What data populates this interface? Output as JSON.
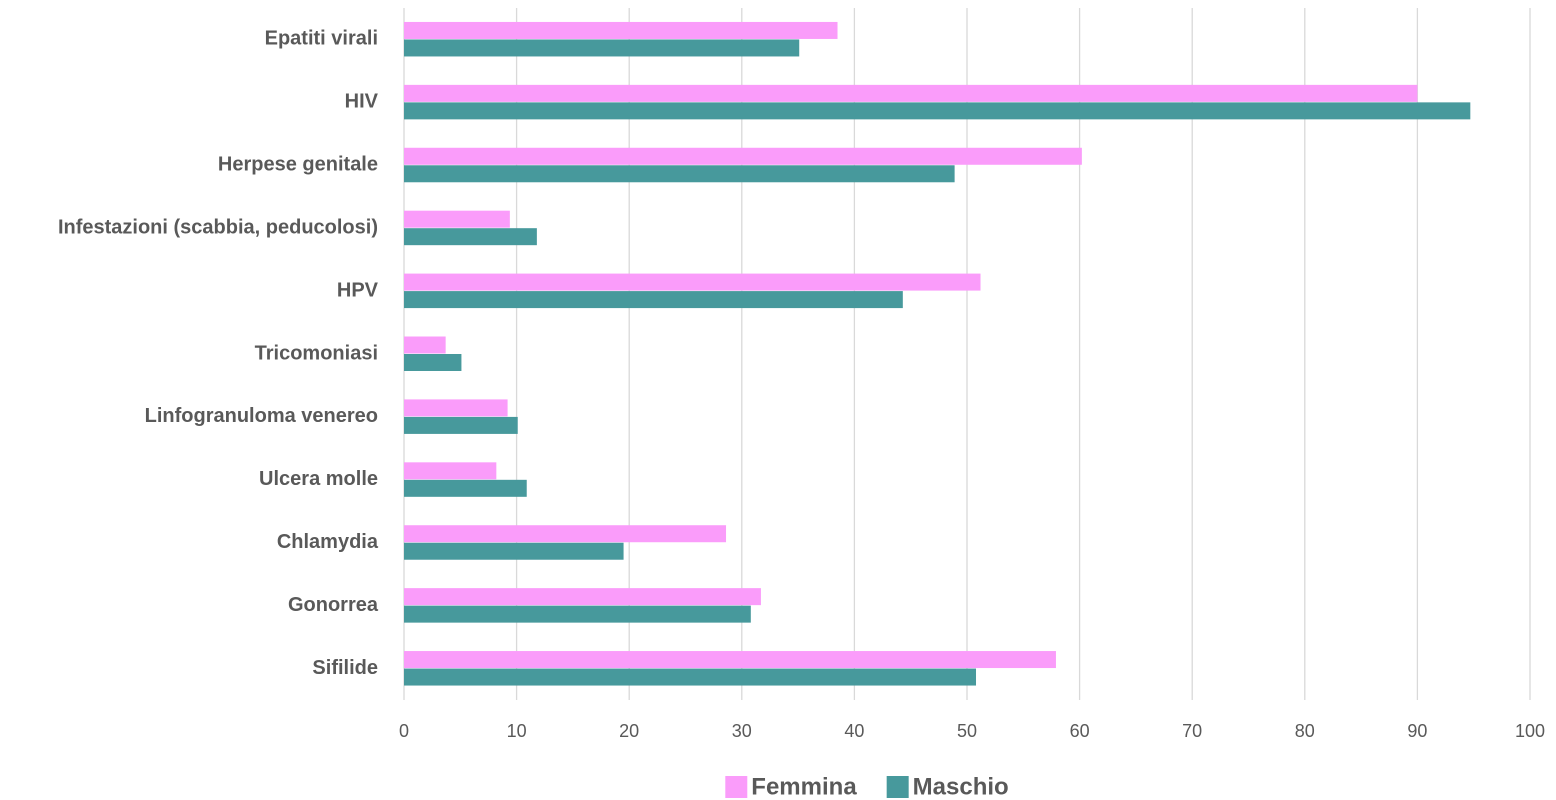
{
  "chart_data": {
    "type": "hbar",
    "categories": [
      "Epatiti virali",
      "HIV",
      "Herpese genitale",
      "Infestazioni (scabbia, peducolosi)",
      "HPV",
      "Tricomoniasi",
      "Linfogranuloma venereo",
      "Ulcera molle",
      "Chlamydia",
      "Gonorrea",
      "Sifilide"
    ],
    "series": [
      {
        "name": "Femmina",
        "color": "#fa9cfa",
        "values": [
          38.5,
          90.0,
          60.2,
          9.4,
          51.2,
          3.7,
          9.2,
          8.2,
          28.6,
          31.7,
          57.9
        ]
      },
      {
        "name": "Maschio",
        "color": "#47999c",
        "values": [
          35.1,
          94.7,
          48.9,
          11.8,
          44.3,
          5.1,
          10.1,
          10.9,
          19.5,
          30.8,
          50.8
        ]
      }
    ],
    "xlim": [
      0,
      100
    ],
    "xticks": [
      0,
      10,
      20,
      30,
      40,
      50,
      60,
      70,
      80,
      90,
      100
    ],
    "grid": true,
    "legend": "bottom"
  }
}
